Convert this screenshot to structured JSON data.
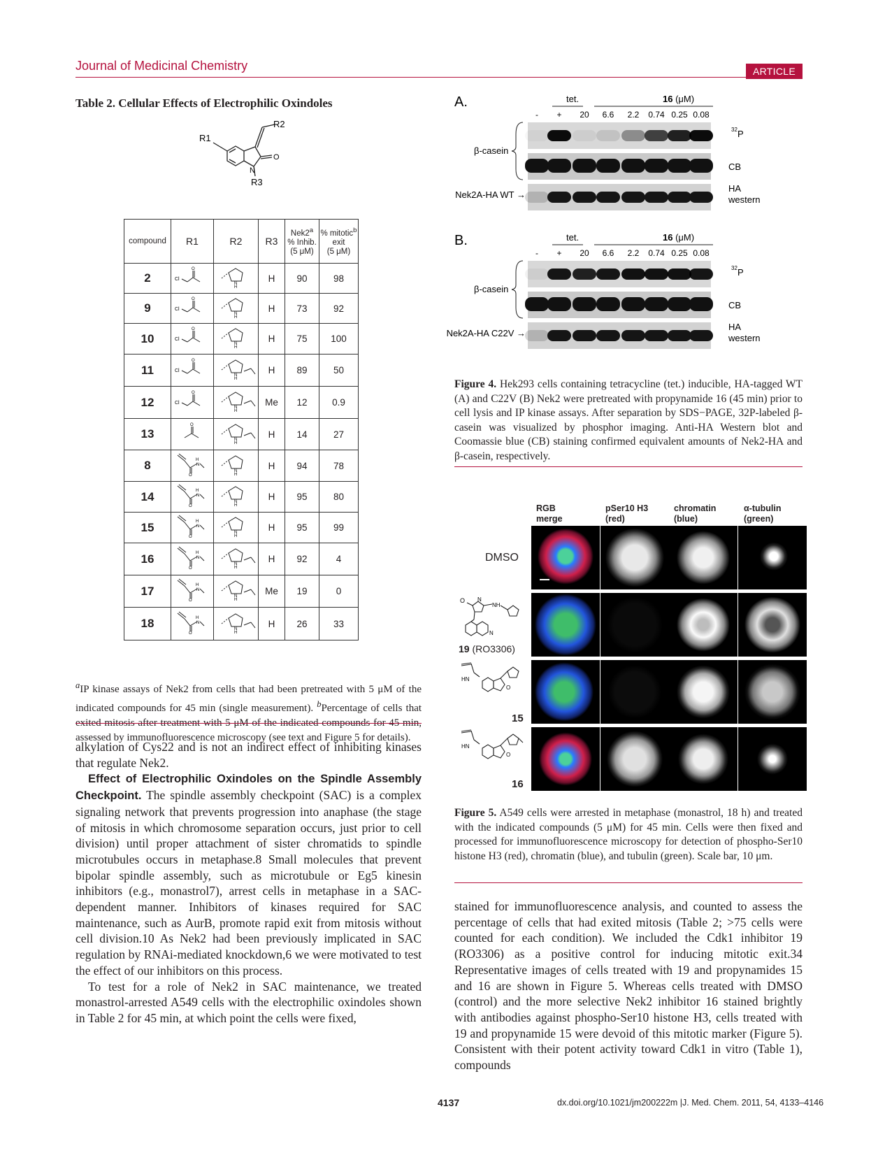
{
  "header": {
    "journal": "Journal of Medicinal Chemistry",
    "badge": "ARTICLE"
  },
  "table2": {
    "title": "Table 2.  Cellular Effects of Electrophilic Oxindoles",
    "scaffold_labels": {
      "r1": "R1",
      "r2": "R2",
      "r3": "R3",
      "n": "N",
      "o": "O"
    },
    "headers": {
      "compound": "compound",
      "r1": "R1",
      "r2": "R2",
      "r3": "R3",
      "nek2": "Nek2",
      "nek2_sup": "a",
      "nek2_l2": "% Inhib.",
      "nek2_l3": "(5 μM)",
      "mitotic": "% mitotic",
      "mitotic_sup": "b",
      "mitotic_l2": "exit",
      "mitotic_l3": "(5 μM)"
    },
    "rows": [
      {
        "id": "2",
        "r3": "H",
        "inhib": "90",
        "exit": "98"
      },
      {
        "id": "9",
        "r3": "H",
        "inhib": "73",
        "exit": "92"
      },
      {
        "id": "10",
        "r3": "H",
        "inhib": "75",
        "exit": "100"
      },
      {
        "id": "11",
        "r3": "H",
        "inhib": "89",
        "exit": "50"
      },
      {
        "id": "12",
        "r3": "Me",
        "inhib": "12",
        "exit": "0.9"
      },
      {
        "id": "13",
        "r3": "H",
        "inhib": "14",
        "exit": "27"
      },
      {
        "id": "8",
        "r3": "H",
        "inhib": "94",
        "exit": "78"
      },
      {
        "id": "14",
        "r3": "H",
        "inhib": "95",
        "exit": "80"
      },
      {
        "id": "15",
        "r3": "H",
        "inhib": "95",
        "exit": "99"
      },
      {
        "id": "16",
        "r3": "H",
        "inhib": "92",
        "exit": "4"
      },
      {
        "id": "17",
        "r3": "Me",
        "inhib": "19",
        "exit": "0"
      },
      {
        "id": "18",
        "r3": "H",
        "inhib": "26",
        "exit": "33"
      }
    ],
    "footnote_a_mark": "a",
    "footnote_a": "IP kinase assays of Nek2 from cells that had been pretreated with 5 μM of the indicated compounds for 45 min (single measurement).",
    "footnote_b_mark": "b",
    "footnote_b": "Percentage of cells that exited mitosis after treatment with 5 μM of the indicated compounds for 45 min, assessed by immunofluorescence microscopy (see text and Figure 5 for details)."
  },
  "figure4": {
    "panel_a": "A.",
    "panel_b": "B.",
    "tet": "tet.",
    "conc_compound": "16",
    "conc_unit": "(μM)",
    "lanes": [
      "-",
      "+",
      "20",
      "6.6",
      "2.2",
      "0.74",
      "0.25",
      "0.08"
    ],
    "beta_casein": "β-casein",
    "p32": "32",
    "p32_label": "P",
    "cb": "CB",
    "ha": "HA",
    "western": "western",
    "nek2_wt": "Nek2A-HA WT",
    "nek2_c22v": "Nek2A-HA C22V",
    "caption_label": "Figure 4.",
    "caption": "Hek293 cells containing tetracycline (tet.) inducible, HA-tagged WT (A) and C22V (B) Nek2 were pretreated with propynamide 16 (45 min) prior to cell lysis and IP kinase assays. After separation by SDS−PAGE, 32P-labeled β-casein was visualized by phosphor imaging. Anti-HA Western blot and Coomassie blue (CB) staining confirmed equivalent amounts of Nek2-HA and β-casein, respectively."
  },
  "figure5": {
    "col_headers": [
      "RGB\nmerge",
      "pSer10 H3\n(red)",
      "chromatin\n(blue)",
      "α-tubulin\n(green)"
    ],
    "col1_l1": "RGB",
    "col1_l2": "merge",
    "col2_l1": "pSer10 H3",
    "col2_l2": "(red)",
    "col3_l1": "chromatin",
    "col3_l2": "(blue)",
    "col4_l1": "α-tubulin",
    "col4_l2": "(green)",
    "row_dmso": "DMSO",
    "row19_num": "19",
    "row19_name": "(RO3306)",
    "row15": "15",
    "row16": "16",
    "caption_label": "Figure 5.",
    "caption": "A549 cells were arrested in metaphase (monastrol, 18 h) and treated with the indicated compounds (5 μM) for 45 min. Cells were then fixed and processed for immunofluorescence microscopy for detection of phospho-Ser10 histone H3 (red), chromatin (blue), and tubulin (green). Scale bar, 10 μm."
  },
  "left_text": {
    "p1": "alkylation of Cys22 and is not an indirect effect of inhibiting kinases that regulate Nek2.",
    "section_title": "Effect of Electrophilic Oxindoles on the Spindle Assembly Checkpoint.",
    "p2": "The spindle assembly checkpoint (SAC) is a complex signaling network that prevents progression into anaphase (the stage of mitosis in which chromosome separation occurs, just prior to cell division) until proper attachment of sister chromatids to spindle microtubules occurs in metaphase.8 Small molecules that prevent bipolar spindle assembly, such as microtubule or Eg5 kinesin inhibitors (e.g., monastrol7), arrest cells in metaphase in a SAC-dependent manner. Inhibitors of kinases required for SAC maintenance, such as AurB, promote rapid exit from mitosis without cell division.10 As Nek2 had been previously implicated in SAC regulation by RNAi-mediated knockdown,6 we were motivated to test the effect of our inhibitors on this process.",
    "p3": "To test for a role of Nek2 in SAC maintenance, we treated monastrol-arrested A549 cells with the electrophilic oxindoles shown in Table 2 for 45 min, at which point the cells were fixed,"
  },
  "right_text": {
    "p1": "stained for immunofluorescence analysis, and counted to assess the percentage of cells that had exited mitosis (Table 2; >75 cells were counted for each condition). We included the Cdk1 inhibitor 19 (RO3306) as a positive control for inducing mitotic exit.34 Representative images of cells treated with 19 and propynamides 15 and 16 are shown in Figure 5. Whereas cells treated with DMSO (control) and the more selective Nek2 inhibitor 16 stained brightly with antibodies against phospho-Ser10 histone H3, cells treated with 19 and propynamide 15 were devoid of this mitotic marker (Figure 5). Consistent with their potent activity toward Cdk1 in vitro (Table 1), compounds"
  },
  "footer": {
    "page": "4137",
    "doi": "dx.doi.org/10.1021/jm200222m |J. Med. Chem. 2011, 54, 4133–4146"
  },
  "colors": {
    "accent": "#b5123e",
    "text": "#231f20"
  }
}
